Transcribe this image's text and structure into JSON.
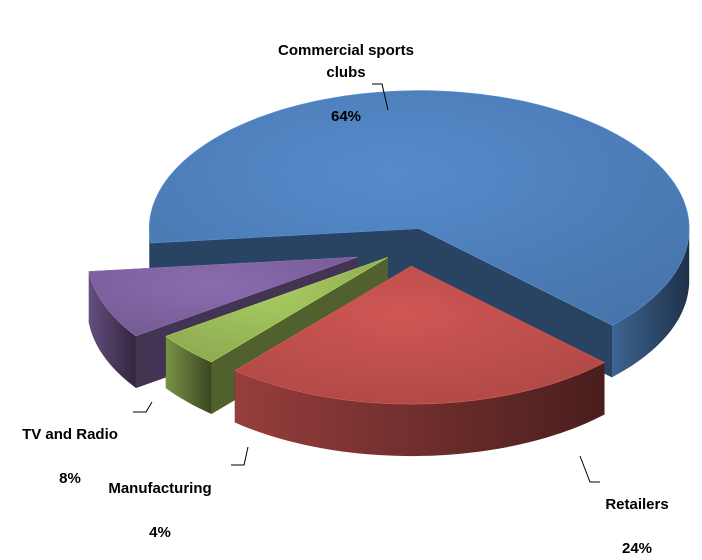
{
  "chart_data": {
    "type": "pie",
    "style": "3d-exploded",
    "title": "",
    "legend": "none",
    "slices": [
      {
        "label": "Commercial sports clubs",
        "value": 64,
        "display_name": "Commercial sports\nclubs",
        "display_value": "64%",
        "color": "#4F81BD"
      },
      {
        "label": "Retailers",
        "value": 24,
        "display_name": "Retailers",
        "display_value": "24%",
        "color": "#C0504D"
      },
      {
        "label": "Manufacturing",
        "value": 4,
        "display_name": "Manufacturing",
        "display_value": "4%",
        "color": "#9BBB59"
      },
      {
        "label": "TV and Radio",
        "value": 8,
        "display_name": "TV and Radio",
        "display_value": "8%",
        "color": "#8064A2"
      }
    ]
  }
}
